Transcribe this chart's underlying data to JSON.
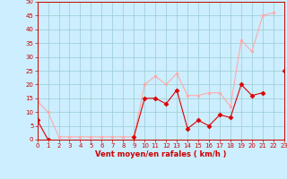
{
  "x": [
    0,
    1,
    2,
    3,
    4,
    5,
    6,
    7,
    8,
    9,
    10,
    11,
    12,
    13,
    14,
    15,
    16,
    17,
    18,
    19,
    20,
    21,
    22,
    23
  ],
  "vent_moyen": [
    7,
    0,
    null,
    null,
    null,
    null,
    null,
    null,
    null,
    1,
    15,
    15,
    13,
    18,
    4,
    7,
    5,
    9,
    8,
    20,
    16,
    17,
    null,
    25
  ],
  "rafales": [
    14,
    10,
    1,
    1,
    1,
    1,
    1,
    1,
    1,
    1,
    20,
    23,
    20,
    24,
    16,
    16,
    17,
    17,
    12,
    36,
    32,
    45,
    46,
    null
  ],
  "bg_color": "#cceeff",
  "grid_color": "#99cccc",
  "line_moyen_color": "#dd0000",
  "line_rafales_color": "#ffaaaa",
  "xlabel": "Vent moyen/en rafales ( km/h )",
  "ylabel_ticks": [
    0,
    5,
    10,
    15,
    20,
    25,
    30,
    35,
    40,
    45,
    50
  ],
  "ylim": [
    0,
    50
  ],
  "xlim": [
    0,
    23
  ],
  "tick_fontsize": 5,
  "xlabel_fontsize": 6,
  "marker_size_moyen": 2.5,
  "marker_size_rafales": 2.0,
  "line_width": 0.8
}
